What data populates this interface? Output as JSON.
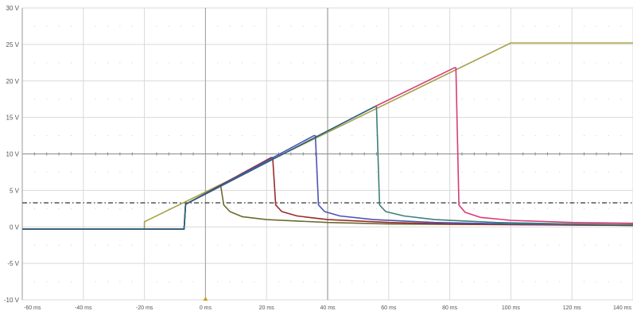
{
  "chart_data": {
    "type": "line",
    "title": "",
    "xlabel": "",
    "ylabel": "",
    "x_unit": "ms",
    "y_unit": "V",
    "xlim": [
      -60,
      140
    ],
    "ylim": [
      -10,
      30
    ],
    "x_ticks": [
      -60,
      -40,
      -20,
      0,
      20,
      40,
      60,
      80,
      100,
      120,
      140
    ],
    "y_ticks": [
      30,
      25,
      20,
      15,
      10,
      5,
      0,
      -5,
      -10
    ],
    "x_tick_labels": [
      "-60 ms",
      "-40 ms",
      "-20 ms",
      "0 ms",
      "20 ms",
      "40 ms",
      "60 ms",
      "80 ms",
      "100 ms",
      "120 ms",
      "140 ms"
    ],
    "y_tick_labels": [
      "30 V",
      "25 V",
      "20 V",
      "15 V",
      "10 V",
      "5 V",
      "0 V",
      "-5 V",
      "-10 V"
    ],
    "grid": true,
    "legend": "none",
    "threshold": {
      "y": 3.3,
      "color": "#333333",
      "style": "dash-dot"
    },
    "series": [
      {
        "color": "#a8a04a",
        "x": [
          -60,
          -20,
          -20,
          100,
          140
        ],
        "y": [
          -0.3,
          -0.3,
          0.7,
          25.2,
          25.2
        ]
      },
      {
        "color": "#6b6b2e",
        "x": [
          -60,
          -7,
          -6.5,
          4.5,
          5,
          6,
          8,
          12,
          20,
          40,
          60,
          140
        ],
        "y": [
          -0.3,
          -0.3,
          3.1,
          5.6,
          5.6,
          3,
          2.1,
          1.4,
          1,
          0.6,
          0.4,
          0.2
        ]
      },
      {
        "color": "#9a2a2a",
        "x": [
          -60,
          -7,
          -6.5,
          21.5,
          22,
          23,
          25,
          30,
          40,
          60,
          80,
          140
        ],
        "y": [
          -0.3,
          -0.3,
          3.1,
          9.5,
          9.5,
          3,
          2.1,
          1.5,
          1,
          0.6,
          0.4,
          0.2
        ]
      },
      {
        "color": "#4a55b0",
        "x": [
          -60,
          -7,
          -6.5,
          35.5,
          36,
          37,
          39,
          44,
          55,
          75,
          100,
          140
        ],
        "y": [
          -0.3,
          -0.3,
          3.1,
          12.5,
          12.5,
          3,
          2.1,
          1.5,
          1,
          0.6,
          0.4,
          0.3
        ]
      },
      {
        "color": "#3f7f78",
        "x": [
          -60,
          -7,
          -6.5,
          55.5,
          56,
          57,
          59,
          65,
          75,
          95,
          120,
          140
        ],
        "y": [
          -0.3,
          -0.3,
          3.1,
          16.5,
          16.5,
          3,
          2.1,
          1.5,
          1,
          0.6,
          0.4,
          0.3
        ]
      },
      {
        "color": "#d63c78",
        "x": [
          55.5,
          81.5,
          82,
          83,
          85,
          90,
          100,
          120,
          140
        ],
        "y": [
          16.5,
          21.8,
          21.8,
          3,
          2,
          1.3,
          0.9,
          0.6,
          0.5
        ]
      },
      {
        "color": "#2e5f7c",
        "x": [
          -60,
          -7,
          -6.5,
          55.5
        ],
        "y": [
          -0.3,
          -0.3,
          3.1,
          16.5
        ]
      }
    ]
  }
}
